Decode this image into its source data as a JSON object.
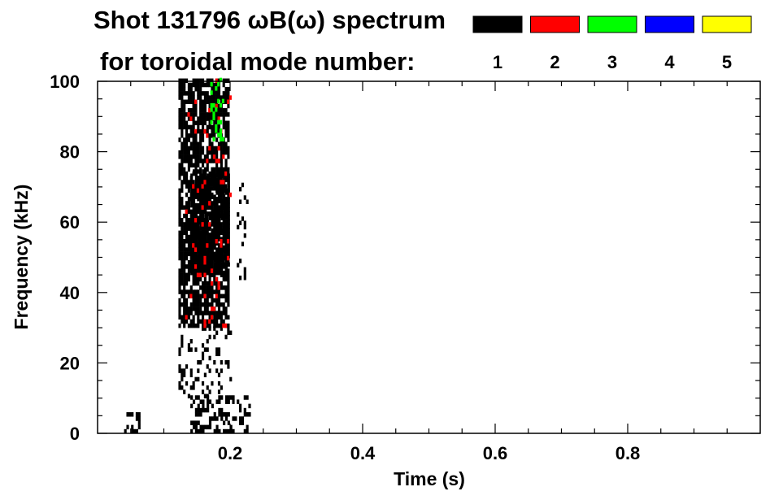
{
  "chart_data": {
    "type": "heatmap",
    "title": "Shot 131796 ωB(ω) spectrum",
    "subtitle": "for toroidal mode number:",
    "xlabel": "Time (s)",
    "ylabel": "Frequency (kHz)",
    "xlim": [
      0.0,
      1.0
    ],
    "ylim": [
      0,
      100
    ],
    "x_ticks": [
      {
        "value": 0.2,
        "label": "0.2"
      },
      {
        "value": 0.4,
        "label": "0.4"
      },
      {
        "value": 0.6,
        "label": "0.6"
      },
      {
        "value": 0.8,
        "label": "0.8"
      }
    ],
    "y_ticks": [
      {
        "value": 0,
        "label": "0"
      },
      {
        "value": 20,
        "label": "20"
      },
      {
        "value": 40,
        "label": "40"
      },
      {
        "value": 60,
        "label": "60"
      },
      {
        "value": 80,
        "label": "80"
      },
      {
        "value": 100,
        "label": "100"
      }
    ],
    "legend": {
      "placement": "top-right",
      "entries": [
        {
          "label": "1",
          "color": "#000000"
        },
        {
          "label": "2",
          "color": "#ff0000"
        },
        {
          "label": "3",
          "color": "#00ff00"
        },
        {
          "label": "4",
          "color": "#0000ff"
        },
        {
          "label": "5",
          "color": "#ffff00"
        }
      ]
    },
    "grid": false,
    "regions": [
      {
        "mode": "1",
        "t_start": 0.122,
        "t_end": 0.198,
        "f_low": 30,
        "f_high": 100,
        "density": 0.75
      },
      {
        "mode": "1",
        "t_start": 0.14,
        "t_end": 0.198,
        "f_low": 45,
        "f_high": 75,
        "density": 0.85
      },
      {
        "mode": "1",
        "t_start": 0.122,
        "t_end": 0.2,
        "f_low": 10,
        "f_high": 30,
        "density": 0.2
      },
      {
        "mode": "1",
        "t_start": 0.14,
        "t_end": 0.23,
        "f_low": 0,
        "f_high": 10,
        "density": 0.35
      },
      {
        "mode": "1",
        "t_start": 0.21,
        "t_end": 0.225,
        "f_low": 40,
        "f_high": 72,
        "density": 0.15
      },
      {
        "mode": "1",
        "t_start": 0.04,
        "t_end": 0.062,
        "f_low": 0,
        "f_high": 5,
        "density": 0.4
      },
      {
        "mode": "2",
        "t_start": 0.132,
        "t_end": 0.2,
        "f_low": 30,
        "f_high": 100,
        "density": 0.05
      },
      {
        "mode": "3",
        "t_start": 0.17,
        "t_end": 0.19,
        "f_low": 83,
        "f_high": 100,
        "density": 0.25
      }
    ]
  }
}
